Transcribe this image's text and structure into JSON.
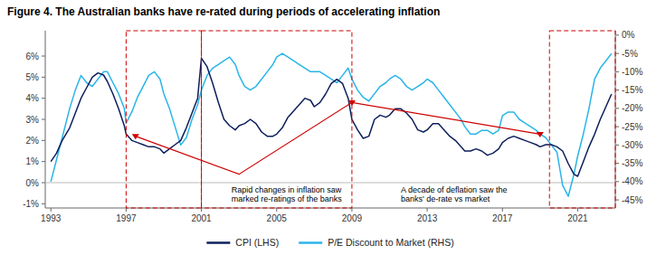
{
  "chart_data": {
    "type": "line",
    "title": "Figure 4. The Australian banks have re-rated during periods of accelerating inflation",
    "x": [
      1993.0,
      1993.3,
      1993.6,
      1994.0,
      1994.3,
      1994.6,
      1994.9,
      1995.2,
      1995.5,
      1995.8,
      1996.0,
      1996.3,
      1996.6,
      1996.9,
      1997.0,
      1997.3,
      1997.6,
      1997.9,
      1998.2,
      1998.5,
      1998.8,
      1999.0,
      1999.3,
      1999.6,
      1999.9,
      2000.2,
      2000.5,
      2000.8,
      2001.0,
      2001.3,
      2001.6,
      2001.9,
      2002.2,
      2002.5,
      2002.8,
      2003.0,
      2003.3,
      2003.6,
      2003.9,
      2004.2,
      2004.5,
      2004.8,
      2005.0,
      2005.3,
      2005.6,
      2005.9,
      2006.2,
      2006.5,
      2006.8,
      2007.0,
      2007.3,
      2007.6,
      2007.9,
      2008.2,
      2008.5,
      2008.8,
      2009.0,
      2009.3,
      2009.6,
      2009.9,
      2010.2,
      2010.5,
      2010.8,
      2011.0,
      2011.3,
      2011.6,
      2011.9,
      2012.2,
      2012.5,
      2012.8,
      2013.0,
      2013.3,
      2013.6,
      2013.9,
      2014.2,
      2014.5,
      2014.8,
      2015.0,
      2015.3,
      2015.6,
      2015.9,
      2016.2,
      2016.5,
      2016.8,
      2017.0,
      2017.3,
      2017.6,
      2017.9,
      2018.2,
      2018.5,
      2018.8,
      2019.0,
      2019.3,
      2019.6,
      2019.9,
      2020.2,
      2020.5,
      2020.8,
      2021.0,
      2021.3,
      2021.6,
      2021.9,
      2022.2,
      2022.5,
      2022.8
    ],
    "series": [
      {
        "name": "CPI (LHS)",
        "color": "#0d1f5c",
        "values": [
          0.01,
          0.014,
          0.02,
          0.026,
          0.033,
          0.04,
          0.045,
          0.05,
          0.052,
          0.051,
          0.048,
          0.042,
          0.035,
          0.027,
          0.023,
          0.02,
          0.019,
          0.018,
          0.017,
          0.017,
          0.016,
          0.014,
          0.016,
          0.018,
          0.02,
          0.026,
          0.033,
          0.04,
          0.059,
          0.055,
          0.047,
          0.038,
          0.03,
          0.027,
          0.025,
          0.027,
          0.028,
          0.03,
          0.028,
          0.024,
          0.022,
          0.022,
          0.023,
          0.026,
          0.031,
          0.034,
          0.037,
          0.04,
          0.039,
          0.036,
          0.038,
          0.042,
          0.047,
          0.049,
          0.047,
          0.04,
          0.03,
          0.025,
          0.021,
          0.022,
          0.03,
          0.032,
          0.031,
          0.032,
          0.035,
          0.035,
          0.033,
          0.03,
          0.025,
          0.024,
          0.025,
          0.028,
          0.028,
          0.025,
          0.022,
          0.02,
          0.017,
          0.015,
          0.015,
          0.016,
          0.015,
          0.013,
          0.014,
          0.016,
          0.019,
          0.021,
          0.022,
          0.021,
          0.02,
          0.019,
          0.018,
          0.017,
          0.018,
          0.018,
          0.017,
          0.015,
          0.009,
          0.004,
          0.003,
          0.01,
          0.017,
          0.023,
          0.03,
          0.036,
          0.042
        ]
      },
      {
        "name": "P/E Discount to Market (RHS)",
        "color": "#29b5e8",
        "axis": "y2",
        "values": [
          -0.4,
          -0.34,
          -0.28,
          -0.2,
          -0.15,
          -0.11,
          -0.13,
          -0.14,
          -0.12,
          -0.1,
          -0.1,
          -0.13,
          -0.16,
          -0.2,
          -0.24,
          -0.21,
          -0.17,
          -0.14,
          -0.11,
          -0.1,
          -0.12,
          -0.16,
          -0.2,
          -0.25,
          -0.3,
          -0.28,
          -0.23,
          -0.19,
          -0.15,
          -0.11,
          -0.09,
          -0.08,
          -0.07,
          -0.06,
          -0.08,
          -0.11,
          -0.14,
          -0.15,
          -0.14,
          -0.12,
          -0.1,
          -0.08,
          -0.06,
          -0.05,
          -0.06,
          -0.07,
          -0.08,
          -0.09,
          -0.1,
          -0.1,
          -0.1,
          -0.11,
          -0.12,
          -0.13,
          -0.11,
          -0.09,
          -0.12,
          -0.15,
          -0.17,
          -0.18,
          -0.16,
          -0.14,
          -0.13,
          -0.12,
          -0.11,
          -0.12,
          -0.14,
          -0.15,
          -0.14,
          -0.13,
          -0.12,
          -0.13,
          -0.15,
          -0.17,
          -0.19,
          -0.21,
          -0.23,
          -0.25,
          -0.27,
          -0.27,
          -0.26,
          -0.26,
          -0.27,
          -0.26,
          -0.22,
          -0.21,
          -0.21,
          -0.23,
          -0.24,
          -0.25,
          -0.26,
          -0.27,
          -0.28,
          -0.3,
          -0.32,
          -0.41,
          -0.44,
          -0.38,
          -0.33,
          -0.27,
          -0.2,
          -0.12,
          -0.09,
          -0.07,
          -0.05
        ]
      }
    ],
    "xlim": [
      1992.7,
      2023.0
    ],
    "xticks": [
      1993,
      1997,
      2001,
      2005,
      2009,
      2013,
      2017,
      2021
    ],
    "ylim": [
      -0.012,
      0.072
    ],
    "yticks": [
      {
        "value": -0.01,
        "label": "-1%"
      },
      {
        "value": 0.0,
        "label": "0%"
      },
      {
        "value": 0.01,
        "label": "1%"
      },
      {
        "value": 0.02,
        "label": "2%"
      },
      {
        "value": 0.03,
        "label": "3%"
      },
      {
        "value": 0.04,
        "label": "4%"
      },
      {
        "value": 0.05,
        "label": "5%"
      },
      {
        "value": 0.06,
        "label": "6%"
      }
    ],
    "y2lim": [
      -0.472,
      0.012
    ],
    "y2ticks": [
      {
        "value": 0.0,
        "label": "0%"
      },
      {
        "value": -0.05,
        "label": "-5%"
      },
      {
        "value": -0.1,
        "label": "-10%"
      },
      {
        "value": -0.15,
        "label": "-15%"
      },
      {
        "value": -0.2,
        "label": "-20%"
      },
      {
        "value": -0.25,
        "label": "-25%"
      },
      {
        "value": -0.3,
        "label": "-30%"
      },
      {
        "value": -0.35,
        "label": "-35%"
      },
      {
        "value": -0.4,
        "label": "-40%"
      },
      {
        "value": -0.45,
        "label": "-45%"
      }
    ],
    "hlines": [
      {
        "y": 0.0,
        "color": "#bbbbbb"
      }
    ],
    "boxes": [
      {
        "x1": 1997.0,
        "x2": 2001.0
      },
      {
        "x1": 2001.0,
        "x2": 2009.0
      },
      {
        "x1": 2019.5,
        "x2": 2023.0
      }
    ],
    "box_color": "#cc0000",
    "trend_line": {
      "points": [
        [
          1997.5,
          0.022
        ],
        [
          2003.0,
          0.004
        ],
        [
          2009.0,
          0.038
        ],
        [
          2019.0,
          0.023
        ]
      ],
      "color": "#cc0000"
    },
    "markers": [
      [
        1997.5,
        0.022
      ],
      [
        2009.0,
        0.038
      ],
      [
        2019.0,
        0.023
      ]
    ],
    "marker": "triangle-down",
    "annotations": [
      {
        "text": "Rapid changes in inflation saw\nmarked re-ratings of the banks",
        "x": 2002.5,
        "y": 0.0
      },
      {
        "text": "A decade of deflation saw the\nbanks' de-rate vs market",
        "x": 2011.5,
        "y": 0.0
      }
    ],
    "grid": false,
    "legend": "bottom"
  }
}
